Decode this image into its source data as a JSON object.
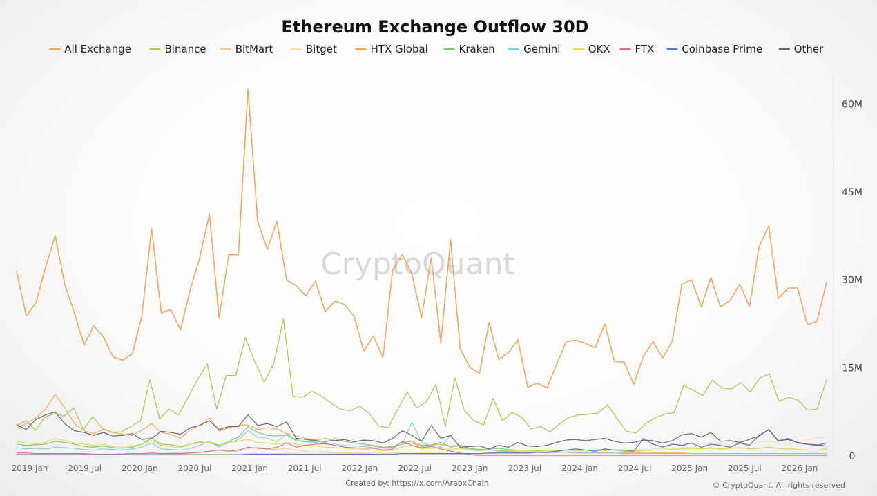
{
  "chart_data": {
    "type": "line",
    "title": "Ethereum Exchange Outflow 30D",
    "ylim": [
      0,
      65000000
    ],
    "x_ticks": [
      "2019 Jan",
      "2019 Jul",
      "2020 Jan",
      "2020 Jul",
      "2021 Jan",
      "2021 Jul",
      "2022 Jan",
      "2022 Jul",
      "2023 Jan",
      "2023 Jul",
      "2024 Jan",
      "2024 Jul",
      "2025 Jan",
      "2025 Jul",
      "2026 Jan"
    ],
    "y_ticks": [
      {
        "value": 0,
        "label": "0"
      },
      {
        "value": 15000000,
        "label": "15M"
      },
      {
        "value": 30000000,
        "label": "30M"
      },
      {
        "value": 45000000,
        "label": "45M"
      },
      {
        "value": 60000000,
        "label": "60M"
      }
    ],
    "watermark": "CryptoQuant",
    "created_by": "Created by: https://x.com/ArabxChain",
    "copyright": "© CryptoQuant. All rights reserved",
    "series": [
      {
        "name": "All Exchange",
        "color": "#f0a860",
        "width": 1.6,
        "values": [
          31.5,
          23.9,
          26.1,
          32.1,
          37.6,
          29.2,
          24.4,
          18.9,
          22.2,
          20.3,
          16.9,
          16.3,
          17.4,
          23.9,
          38.8,
          24.4,
          24.9,
          21.5,
          28.3,
          33.8,
          41.2,
          23.5,
          34.3,
          34.3,
          62.5,
          40,
          35.2,
          40,
          30,
          29,
          27.3,
          29.8,
          24.6,
          26.4,
          25.8,
          23.8,
          17.9,
          20.4,
          16.8,
          31.7,
          34.3,
          31,
          23.5,
          33.8,
          19.2,
          36.9,
          18.3,
          15.1,
          14.1,
          22.8,
          16.4,
          17.6,
          19.8,
          11.7,
          12.4,
          11.6,
          15.6,
          19.5,
          19.7,
          19.2,
          18.4,
          22.5,
          16.1,
          16,
          12.2,
          17,
          19.5,
          16.7,
          19.6,
          29.3,
          30,
          25.4,
          30.4,
          25.4,
          26.5,
          29.3,
          25.4,
          35.7,
          39.2,
          26.8,
          28.6,
          28.6,
          22.4,
          22.9,
          29.6
        ]
      },
      {
        "name": "Binance",
        "color": "#a8cc58",
        "width": 1.3,
        "values": [
          5.2,
          6,
          4.4,
          6.7,
          7.2,
          6.8,
          8.2,
          4.5,
          6.7,
          4.7,
          4,
          4.1,
          5,
          6,
          13,
          6.3,
          8,
          7,
          10,
          13,
          15.7,
          8,
          13.7,
          13.7,
          20.2,
          16,
          12.6,
          15.8,
          23.4,
          10.2,
          10,
          11,
          10.2,
          9,
          8,
          7.7,
          8.5,
          7.3,
          5.1,
          4.8,
          8,
          10.9,
          8.2,
          9.2,
          12.2,
          5,
          13.3,
          7.7,
          6,
          5.3,
          9.8,
          6,
          7.4,
          6.6,
          4.6,
          5,
          4.1,
          5.5,
          6.6,
          7,
          7.1,
          7.3,
          8.7,
          6.4,
          4.2,
          3.9,
          5.5,
          6.5,
          7.1,
          7.4,
          12,
          11.2,
          10.3,
          12.9,
          11.6,
          11.4,
          12.5,
          10.9,
          13.3,
          14,
          9.3,
          10,
          9.5,
          7.8,
          8,
          13
        ]
      },
      {
        "name": "BitMart",
        "color": "#f2c89c",
        "width": 1.1,
        "values": [
          0.3,
          0.3,
          0.3,
          0.3,
          0.3,
          0.3,
          0.3,
          0.3,
          0.3,
          0.3,
          0.3,
          0.4,
          0.4,
          0.4,
          0.4,
          0.4,
          0.5,
          0.5,
          0.6,
          0.6,
          0.7,
          0.6,
          0.7,
          0.8,
          1.3,
          1.5,
          1.2,
          1.1,
          1.3,
          1,
          0.8,
          0.7,
          0.6,
          0.5,
          0.5,
          0.4,
          0.4,
          0.3,
          0.3,
          0.3,
          0.4,
          0.4,
          0.3,
          0.3,
          0.3,
          0.3,
          0.3,
          0.3,
          0.2,
          0.2,
          0.2,
          0.2,
          0.2,
          0.2,
          0.2,
          0.2,
          0.2,
          0.2,
          0.2,
          0.2,
          0.2,
          0.2,
          0.2,
          0.2,
          0.2,
          0.2,
          0.2,
          0.2,
          0.2,
          0.2,
          0.2,
          0.2,
          0.2,
          0.2,
          0.2,
          0.2,
          0.2,
          0.2,
          0.2,
          0.2,
          0.2,
          0.2,
          0.2,
          0.2,
          0.2
        ]
      },
      {
        "name": "Bitget",
        "color": "#f4e2a0",
        "width": 1.1,
        "values": [
          0.2,
          0.2,
          0.2,
          0.2,
          0.2,
          0.2,
          0.2,
          0.2,
          0.2,
          0.2,
          0.2,
          0.2,
          0.2,
          0.2,
          0.3,
          0.3,
          0.3,
          0.3,
          0.3,
          0.3,
          0.3,
          0.3,
          0.3,
          0.3,
          0.4,
          0.4,
          0.4,
          0.4,
          0.5,
          0.6,
          0.7,
          0.7,
          0.8,
          0.6,
          0.6,
          0.5,
          0.5,
          0.5,
          0.5,
          0.5,
          0.6,
          0.6,
          0.5,
          0.5,
          0.5,
          0.4,
          0.4,
          0.4,
          0.4,
          0.4,
          0.5,
          0.5,
          0.5,
          0.5,
          0.6,
          0.6,
          0.6,
          0.7,
          0.7,
          0.8,
          0.9,
          0.9,
          1,
          1,
          1,
          1.1,
          1.2,
          1.2,
          1.3,
          1.4,
          1.5,
          1.6,
          1.8,
          2,
          2.2,
          2.1,
          2,
          2.3,
          2.5,
          2.2,
          2,
          2.3,
          2.8,
          3.1,
          3.2
        ]
      },
      {
        "name": "HTX Global",
        "color": "#f2a558",
        "width": 1.1,
        "values": [
          4.8,
          5.5,
          6.5,
          8,
          10.5,
          8.2,
          5.5,
          4.3,
          3.8,
          4.5,
          4,
          3.7,
          3.5,
          4.4,
          5.5,
          4,
          3.7,
          3,
          4.5,
          5.2,
          6.5,
          4.2,
          4.8,
          5.2,
          5.3,
          4.5,
          4.8,
          4.6,
          3.8,
          3.4,
          3,
          2.7,
          3,
          2.6,
          2.5,
          2.2,
          2,
          1.8,
          1.5,
          1.6,
          2.3,
          2.5,
          1.8,
          1.9,
          2,
          1.7,
          1.8,
          1.2,
          1,
          1.1,
          0.8,
          0.7,
          0.6,
          0.7,
          0.6,
          0.6,
          0.7,
          0.6,
          0.5,
          0.6,
          0.6,
          0.5,
          0.5,
          0.5,
          0.5,
          0.5,
          0.5,
          0.5,
          0.5,
          0.5,
          0.4,
          0.4,
          0.4,
          0.4,
          0.4,
          0.4,
          0.4,
          0.4,
          0.4,
          0.4,
          0.4,
          0.4,
          0.4,
          0.4,
          0.4
        ]
      },
      {
        "name": "Kraken",
        "color": "#7fc46a",
        "width": 1.1,
        "values": [
          2,
          1.8,
          1.9,
          2,
          2.5,
          2.3,
          2,
          1.6,
          1.5,
          1.7,
          1.4,
          1.3,
          1.5,
          2,
          3,
          2,
          1.9,
          1.6,
          2,
          2.4,
          2.2,
          1.8,
          2.5,
          3.2,
          5,
          4,
          3.5,
          3.4,
          3.6,
          2.6,
          2.4,
          2.5,
          2.3,
          3,
          2.5,
          2.2,
          2,
          1.7,
          1.4,
          1.5,
          2,
          2.2,
          1.6,
          1.9,
          2.3,
          1.5,
          1.8,
          1.3,
          1.1,
          1.2,
          1.3,
          1.1,
          1,
          1,
          0.9,
          0.8,
          0.9,
          1,
          0.9,
          1,
          1,
          1.1,
          1,
          0.8,
          0.8,
          0.9,
          1,
          1,
          1.1,
          1.2,
          1.3,
          1.2,
          1.4,
          1.2,
          1.3,
          1.4,
          1.2,
          1.3,
          1.5,
          1.3,
          1.2,
          1.1,
          1,
          1,
          1.2
        ]
      },
      {
        "name": "Gemini",
        "color": "#7fd0e0",
        "width": 1.1,
        "values": [
          1.4,
          1.2,
          1.3,
          1.2,
          1.5,
          1.4,
          1.3,
          1.1,
          1,
          1.2,
          1.1,
          1,
          1.2,
          1.5,
          2.2,
          1.2,
          1.1,
          1,
          1.3,
          1.8,
          2.5,
          1.5,
          2.3,
          2.8,
          4.3,
          3.2,
          3,
          2.4,
          3.7,
          2.8,
          2.4,
          2.3,
          2,
          2,
          1.8,
          1.7,
          1.6,
          1.4,
          1.3,
          1.4,
          2,
          5.8,
          2.2,
          1.8,
          1.6,
          3.5,
          1.4,
          1.2,
          1,
          1,
          0.9,
          0.8,
          0.7,
          0.7,
          0.6,
          0.5,
          0.6,
          0.6,
          0.5,
          0.5,
          0.5,
          0.5,
          0.5,
          0.4,
          0.4,
          0.4,
          0.4,
          0.4,
          0.4,
          0.4,
          0.4,
          0.4,
          0.4,
          0.4,
          0.4,
          0.4,
          0.4,
          0.4,
          0.4,
          0.4,
          0.4,
          0.4,
          0.4,
          0.4,
          0.4
        ]
      },
      {
        "name": "OKX",
        "color": "#e6d84c",
        "width": 1.1,
        "values": [
          2.5,
          2.2,
          2,
          2.3,
          3,
          2.6,
          2.2,
          2,
          1.8,
          2,
          1.6,
          1.5,
          1.7,
          2,
          2.6,
          1.8,
          1.6,
          1.4,
          2,
          2.2,
          2.4,
          1.9,
          2.2,
          2.5,
          2.8,
          2.3,
          2.2,
          2,
          2.3,
          2,
          1.8,
          1.7,
          1.5,
          1.4,
          1.3,
          1.2,
          1.1,
          1,
          0.9,
          1,
          1.5,
          1.8,
          1.2,
          1.3,
          1.5,
          1.1,
          1.3,
          1,
          0.9,
          1,
          1,
          0.9,
          0.9,
          0.9,
          0.8,
          0.8,
          0.9,
          1,
          0.9,
          1,
          1,
          1.1,
          1,
          0.9,
          0.8,
          0.9,
          1,
          1,
          1.1,
          1.2,
          1.3,
          1.2,
          1.3,
          1.2,
          1.3,
          1.4,
          1.2,
          1.3,
          1.5,
          1.3,
          1.2,
          1.1,
          1,
          1,
          1.2
        ]
      },
      {
        "name": "FTX",
        "color": "#e06a8a",
        "width": 1.1,
        "values": [
          0.5,
          0.5,
          0.4,
          0.4,
          0.4,
          0.4,
          0.4,
          0.4,
          0.3,
          0.3,
          0.3,
          0.3,
          0.4,
          0.4,
          0.5,
          0.4,
          0.4,
          0.4,
          0.5,
          0.6,
          0.8,
          1,
          0.8,
          1,
          1.5,
          1.3,
          1.2,
          1.5,
          2.2,
          1.5,
          1.8,
          2,
          2.1,
          1.8,
          1.5,
          1.4,
          1.3,
          1.3,
          1,
          1.2,
          2.5,
          1.8,
          1.4,
          1.6,
          1.2,
          0.8,
          0.5,
          0.2,
          0.1,
          0.1,
          0.1,
          0.1,
          0.1,
          0.1,
          0.1,
          0.1,
          0.1,
          0.1,
          0.1,
          0.1,
          0.1,
          0.1,
          0.1,
          0.1,
          0.1,
          0.1,
          0.1,
          0.1,
          0.1,
          0.1,
          0.1,
          0.1,
          0.1,
          0.1,
          0.1,
          0.1,
          0.1,
          0.1,
          0.1,
          0.1,
          0.1,
          0.1,
          0.1,
          0.1,
          0.1
        ]
      },
      {
        "name": "Coinbase Prime",
        "color": "#6079c8",
        "width": 1.3,
        "values": [
          0.2,
          0.2,
          0.2,
          0.2,
          0.2,
          0.2,
          0.2,
          0.2,
          0.2,
          0.2,
          0.2,
          0.2,
          0.2,
          0.2,
          0.2,
          0.2,
          0.2,
          0.2,
          0.2,
          0.2,
          0.2,
          0.2,
          0.2,
          0.2,
          0.3,
          0.3,
          0.3,
          0.3,
          0.3,
          0.3,
          0.3,
          0.3,
          0.3,
          0.3,
          0.3,
          0.3,
          0.3,
          0.3,
          0.3,
          0.3,
          0.4,
          0.4,
          0.4,
          0.4,
          0.4,
          0.4,
          0.4,
          0.4,
          0.4,
          0.5,
          0.5,
          0.5,
          0.5,
          0.5,
          0.6,
          0.6,
          0.8,
          1,
          1.2,
          1,
          0.8,
          1.2,
          1,
          1,
          0.8,
          3,
          2,
          1.5,
          2,
          1.8,
          2.2,
          1.5,
          2,
          1.8,
          1.5,
          2.2,
          1.8,
          3.5,
          4.5,
          2.5,
          3,
          2.2,
          2,
          1.8,
          2.2
        ]
      },
      {
        "name": "Other",
        "color": "#6a6a6a",
        "width": 1.2,
        "values": [
          5.3,
          4.5,
          6.2,
          7,
          7.5,
          5.5,
          4.3,
          4,
          3.5,
          4,
          3.4,
          3.5,
          3.8,
          2.8,
          3,
          4.2,
          4,
          3.7,
          4.8,
          5.2,
          6,
          4.5,
          5,
          5,
          7,
          5.2,
          5.5,
          5,
          5.8,
          3,
          2.8,
          2.6,
          2.5,
          2.6,
          2.8,
          2.4,
          2.7,
          2.6,
          2.2,
          3,
          4.3,
          3.5,
          2.5,
          5.2,
          3,
          3.5,
          1.5,
          1.6,
          1.7,
          1.2,
          1.8,
          1.5,
          2.3,
          1.7,
          1.6,
          1.8,
          2.3,
          2.7,
          2.8,
          2.6,
          2.8,
          3,
          2.5,
          2.2,
          2.3,
          2.7,
          2.6,
          2.2,
          2.6,
          3.6,
          3.8,
          3.2,
          4,
          2.5,
          2.6,
          2.3,
          2.8,
          3.4,
          4.5,
          2.6,
          2.8,
          2.3,
          2,
          1.9,
          1.7
        ]
      }
    ]
  }
}
